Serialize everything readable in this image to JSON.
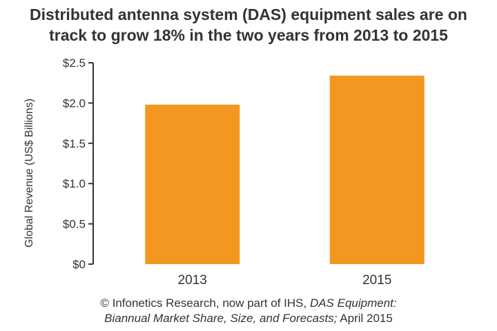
{
  "title": {
    "line1": "Distributed antenna system (DAS) equipment sales are on",
    "line2": "track to grow 18% in the two years from 2013 to 2015"
  },
  "source": {
    "part1": "© Infonetics Research, now part of IHS, ",
    "part2_italic": "DAS Equipment:",
    "part3_italic": "Biannual Market Share, Size, and Forecasts;",
    "part4": " April 2015"
  },
  "colors": {
    "bar": "#F39720",
    "axis": "#333333",
    "text": "#333333"
  },
  "chart_data": {
    "type": "bar",
    "title": "Distributed antenna system (DAS) equipment sales are on track to grow 18% in the two years from 2013 to 2015",
    "xlabel": "",
    "ylabel": "Global Revenue (US$ Billions)",
    "categories": [
      "2013",
      "2015"
    ],
    "values": [
      1.98,
      2.34
    ],
    "ylim": [
      0,
      2.5
    ],
    "yticks": [
      0,
      0.5,
      1.0,
      1.5,
      2.0,
      2.5
    ],
    "ytick_labels": [
      "$0",
      "$0.5",
      "$1.0",
      "$1.5",
      "$2.0",
      "$2.5"
    ],
    "grid": false,
    "legend": "none"
  }
}
